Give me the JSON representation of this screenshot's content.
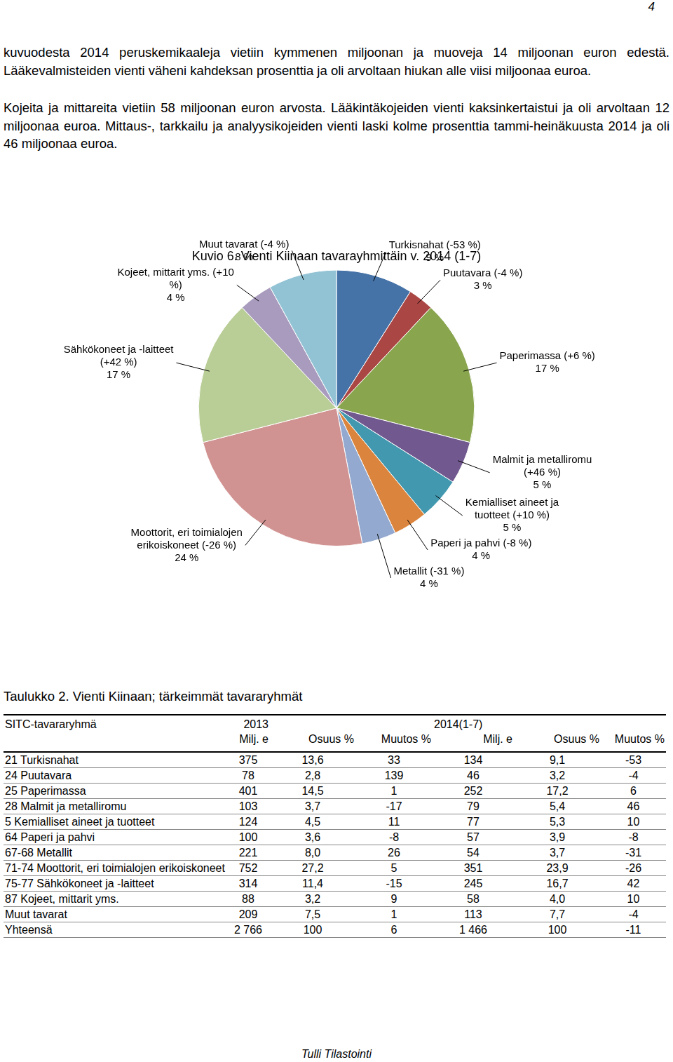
{
  "page_number": "4",
  "paragraphs": [
    "kuvuodesta 2014 peruskemikaaleja vietiin kymmenen miljoonan ja muoveja 14 miljoonan euron edestä. Lääkevalmisteiden vienti väheni kahdeksan prosenttia ja oli arvoltaan hiukan alle viisi miljoonaa euroa.",
    "Kojeita ja mittareita vietiin 58 miljoonan euron arvosta. Lääkintäkojeiden vienti kaksinkertaistui ja oli arvoltaan 12 miljoonaa euroa. Mittaus-, tarkkailu ja analyysikojeiden vienti laski kolme prosenttia tammi-heinäkuusta 2014 ja oli 46 miljoonaa euroa."
  ],
  "chart_data": {
    "type": "pie",
    "title": "Kuvio 6. Vienti Kiinaan tavarayhmittäin v. 2014 (1-7)",
    "categories": [
      "Turkisnahat (-53 %)",
      "Puutavara (-4 %)",
      "Paperimassa (+6 %)",
      "Malmit ja metalliromu (+46 %)",
      "Kemialliset aineet ja tuotteet (+10 %)",
      "Paperi ja pahvi (-8 %)",
      "Metallit (-31 %)",
      "Moottorit, eri toimialojen erikoiskoneet (-26 %)",
      "Sähkökoneet ja -laitteet (+42 %)",
      "Kojeet, mittarit yms. (+10 %)",
      "Muut tavarat (-4 %)"
    ],
    "values": [
      9,
      3,
      17,
      5,
      5,
      4,
      4,
      24,
      17,
      4,
      8
    ],
    "value_labels": [
      "9 %",
      "3 %",
      "17 %",
      "5 %",
      "5 %",
      "4 %",
      "4 %",
      "24 %",
      "17 %",
      "4 %",
      "8 %"
    ],
    "colors": [
      "#4572a7",
      "#aa4643",
      "#89a54e",
      "#71588f",
      "#4198af",
      "#db843d",
      "#93a9cf",
      "#d19392",
      "#b9cd96",
      "#a99bbd",
      "#92c3d5"
    ],
    "data_labels": true
  },
  "table": {
    "caption": "Taulukko 2. Vienti Kiinaan; tärkeimmät tavararyhmät",
    "header": [
      [
        "SITC-tavararyhmä",
        "2013",
        "2014(1-7)"
      ],
      [
        "Milj. e",
        "Osuus %",
        "Muutos %",
        "Milj. e",
        "Osuus %",
        "Muutos %"
      ]
    ],
    "rows": [
      [
        "21 Turkisnahat",
        "375",
        "13,6",
        "33",
        "134",
        "9,1",
        "-53"
      ],
      [
        "24 Puutavara",
        "78",
        "2,8",
        "139",
        "46",
        "3,2",
        "-4"
      ],
      [
        "25 Paperimassa",
        "401",
        "14,5",
        "1",
        "252",
        "17,2",
        "6"
      ],
      [
        "28 Malmit ja metalliromu",
        "103",
        "3,7",
        "-17",
        "79",
        "5,4",
        "46"
      ],
      [
        "5 Kemialliset aineet ja tuotteet",
        "124",
        "4,5",
        "11",
        "77",
        "5,3",
        "10"
      ],
      [
        "64 Paperi ja pahvi",
        "100",
        "3,6",
        "-8",
        "57",
        "3,9",
        "-8"
      ],
      [
        "67-68 Metallit",
        "221",
        "8,0",
        "26",
        "54",
        "3,7",
        "-31"
      ],
      [
        "71-74 Moottorit, eri toimialojen erikoiskoneet",
        "752",
        "27,2",
        "5",
        "351",
        "23,9",
        "-26"
      ],
      [
        "75-77 Sähkökoneet ja -laitteet",
        "314",
        "11,4",
        "-15",
        "245",
        "16,7",
        "42"
      ],
      [
        "87 Kojeet, mittarit yms.",
        "88",
        "3,2",
        "9",
        "58",
        "4,0",
        "10"
      ],
      [
        "Muut tavarat",
        "209",
        "7,5",
        "1",
        "113",
        "7,7",
        "-4"
      ],
      [
        "Yhteensä",
        "2 766",
        "100",
        "6",
        "1 466",
        "100",
        "-11"
      ]
    ]
  },
  "footer": "Tulli Tilastointi"
}
